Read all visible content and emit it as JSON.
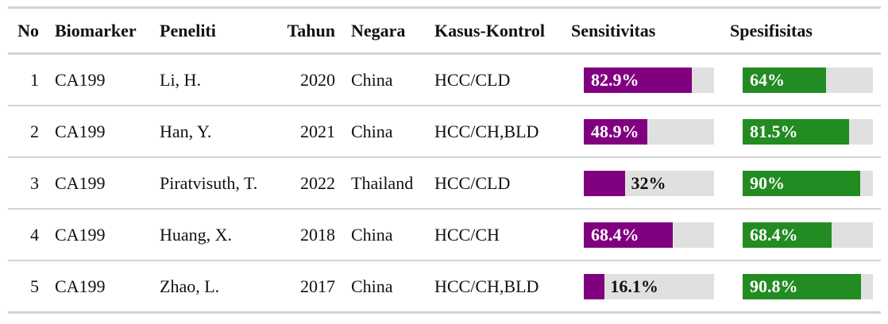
{
  "headers": {
    "no": "No",
    "biomarker": "Biomarker",
    "peneliti": "Peneliti",
    "tahun": "Tahun",
    "negara": "Negara",
    "kasus_kontrol": "Kasus-Kontrol",
    "sensitivitas": "Sensitivitas",
    "spesifisitas": "Spesifisitas"
  },
  "colors": {
    "sensitivitas_bar": "#800080",
    "spesifisitas_bar": "#228b22",
    "bar_track": "#e0e0e0",
    "rule": "#d3d3d3"
  },
  "rows": [
    {
      "no": "1",
      "biomarker": "CA199",
      "peneliti": "Li, H.",
      "tahun": "2020",
      "negara": "China",
      "kasus_kontrol": "HCC/CLD",
      "sensitivitas": 82.9,
      "sensitivitas_label": "82.9%",
      "spesifisitas": 64,
      "spesifisitas_label": "64%"
    },
    {
      "no": "2",
      "biomarker": "CA199",
      "peneliti": "Han, Y.",
      "tahun": "2021",
      "negara": "China",
      "kasus_kontrol": "HCC/CH,BLD",
      "sensitivitas": 48.9,
      "sensitivitas_label": "48.9%",
      "spesifisitas": 81.5,
      "spesifisitas_label": "81.5%"
    },
    {
      "no": "3",
      "biomarker": "CA199",
      "peneliti": "Piratvisuth, T.",
      "tahun": "2022",
      "negara": "Thailand",
      "kasus_kontrol": "HCC/CLD",
      "sensitivitas": 32,
      "sensitivitas_label": "32%",
      "spesifisitas": 90,
      "spesifisitas_label": "90%"
    },
    {
      "no": "4",
      "biomarker": "CA199",
      "peneliti": "Huang, X.",
      "tahun": "2018",
      "negara": "China",
      "kasus_kontrol": "HCC/CH",
      "sensitivitas": 68.4,
      "sensitivitas_label": "68.4%",
      "spesifisitas": 68.4,
      "spesifisitas_label": "68.4%"
    },
    {
      "no": "5",
      "biomarker": "CA199",
      "peneliti": "Zhao, L.",
      "tahun": "2017",
      "negara": "China",
      "kasus_kontrol": "HCC/CH,BLD",
      "sensitivitas": 16.1,
      "sensitivitas_label": "16.1%",
      "spesifisitas": 90.8,
      "spesifisitas_label": "90.8%"
    }
  ]
}
